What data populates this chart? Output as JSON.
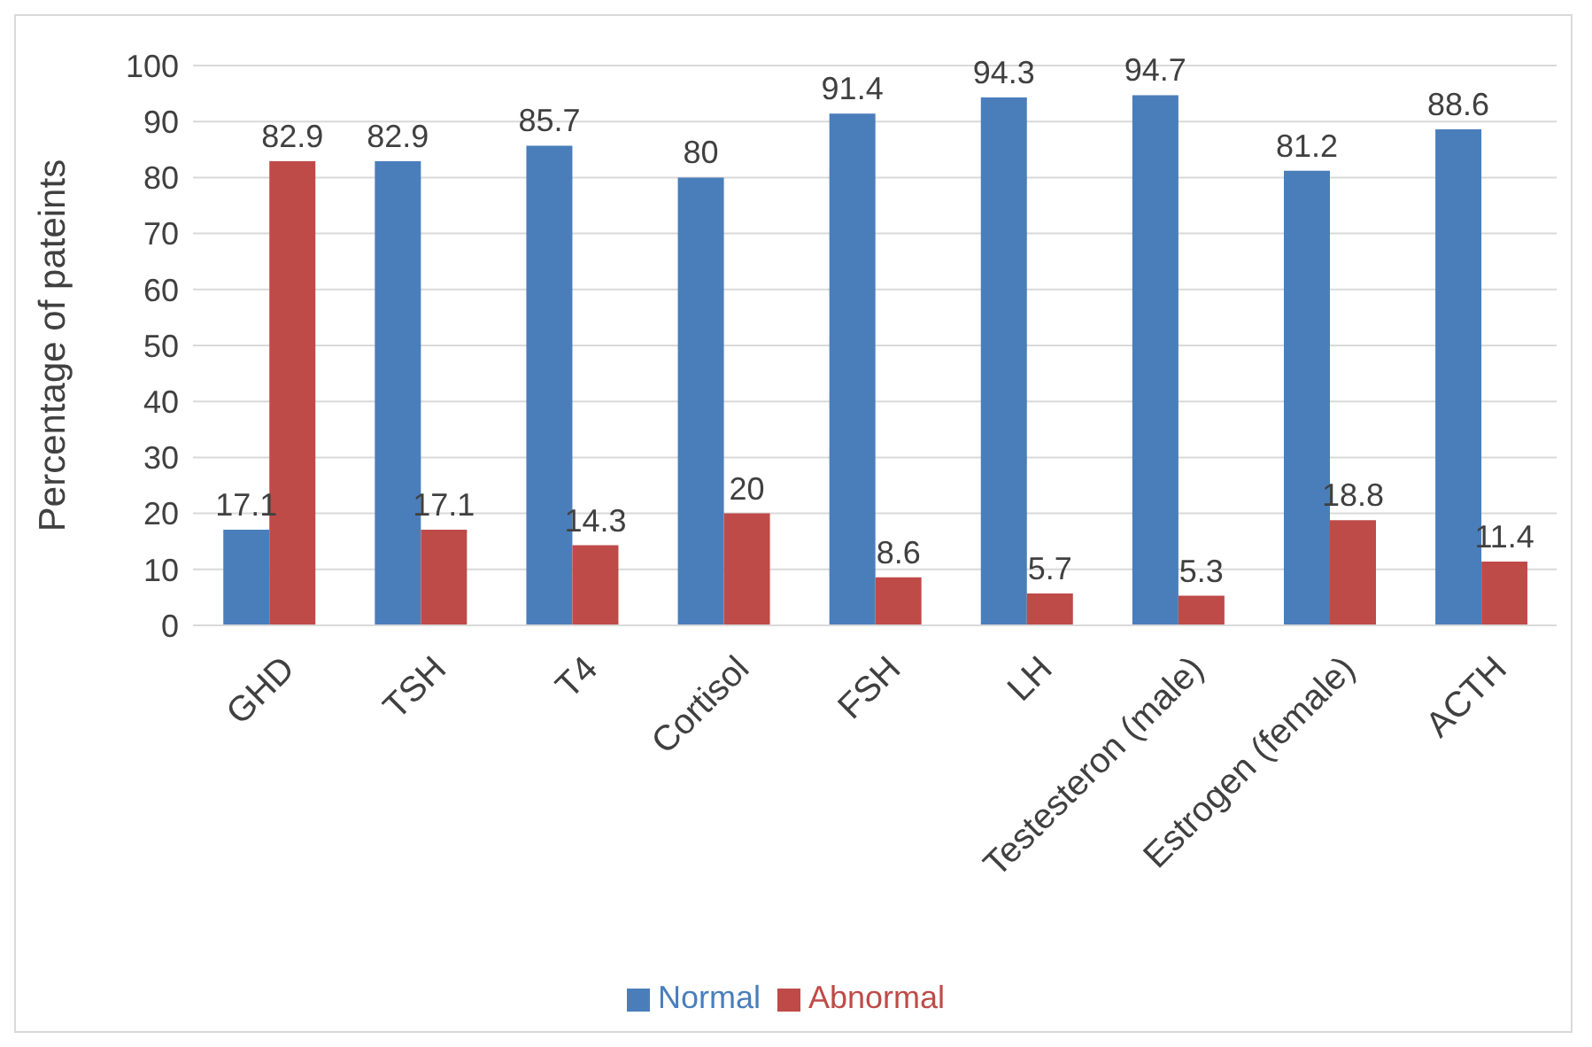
{
  "chart_data": {
    "type": "bar",
    "ylabel": "Percentage of pateints",
    "categories": [
      "GHD",
      "TSH",
      "T4",
      "Cortisol",
      "FSH",
      "LH",
      "Testesteron (male)",
      "Estrogen (female)",
      "ACTH"
    ],
    "series": [
      {
        "name": "Normal",
        "color": "#4a7ebb",
        "values": [
          17.1,
          82.9,
          85.7,
          80,
          91.4,
          94.3,
          94.7,
          81.2,
          88.6
        ]
      },
      {
        "name": "Abnormal",
        "color": "#be4b48",
        "values": [
          82.9,
          17.1,
          14.3,
          20,
          8.6,
          5.7,
          5.3,
          18.8,
          11.4
        ]
      }
    ],
    "ylim": [
      0,
      100
    ],
    "yticks": [
      0,
      10,
      20,
      30,
      40,
      50,
      60,
      70,
      80,
      90,
      100
    ],
    "grid": "y",
    "legend": "bottom",
    "data_labels": true
  }
}
